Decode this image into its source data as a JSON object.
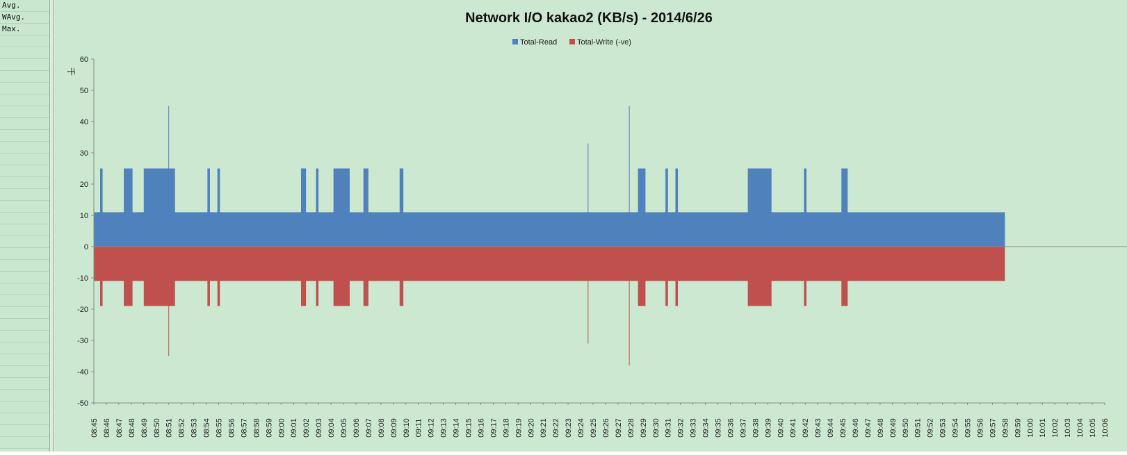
{
  "side_panel": {
    "labels": [
      "Avg.",
      "WAvg.",
      "Max."
    ]
  },
  "colors": {
    "read": "#4f81bd",
    "write": "#c0504d",
    "background": "#cce8d0"
  },
  "chart_data": {
    "type": "area",
    "title": "Network I/O kakao2 (KB/s) - 2014/6/26",
    "ylabel": "千",
    "ylim": [
      -50,
      60
    ],
    "y_ticks": [
      60,
      50,
      40,
      30,
      20,
      10,
      0,
      -10,
      -20,
      -30,
      -40,
      -50
    ],
    "grid": false,
    "legend": "top",
    "categories": [
      "08:45",
      "08:46",
      "08:47",
      "08:48",
      "08:49",
      "08:50",
      "08:51",
      "08:52",
      "08:53",
      "08:54",
      "08:55",
      "08:56",
      "08:57",
      "08:58",
      "08:59",
      "09:00",
      "09:01",
      "09:02",
      "09:03",
      "09:04",
      "09:05",
      "09:06",
      "09:07",
      "09:08",
      "09:09",
      "09:10",
      "09:11",
      "09:12",
      "09:13",
      "09:14",
      "09:15",
      "09:16",
      "09:17",
      "09:18",
      "09:19",
      "09:20",
      "09:21",
      "09:22",
      "09:23",
      "09:24",
      "09:25",
      "09:26",
      "09:27",
      "09:28",
      "09:29",
      "09:30",
      "09:31",
      "09:32",
      "09:33",
      "09:34",
      "09:35",
      "09:36",
      "09:37",
      "09:38",
      "09:39",
      "09:40",
      "09:41",
      "09:42",
      "09:43",
      "09:44",
      "09:45",
      "09:46",
      "09:47",
      "09:48",
      "09:49",
      "09:50",
      "09:51",
      "09:52",
      "09:53",
      "09:54",
      "09:55",
      "09:56",
      "09:57",
      "09:58",
      "09:59",
      "10:00",
      "10:01",
      "10:02",
      "10:03",
      "10:04",
      "10:05",
      "10:06"
    ],
    "data_end_time": "09:58",
    "series": [
      {
        "name": "Total-Read",
        "baseline": 11,
        "bursts": [
          {
            "start": "08:45.5",
            "end": "08:45.7",
            "value": 25
          },
          {
            "start": "08:47.4",
            "end": "08:48.1",
            "value": 25
          },
          {
            "start": "08:49.0",
            "end": "08:51.5",
            "value": 25
          },
          {
            "start": "08:54.1",
            "end": "08:54.3",
            "value": 25
          },
          {
            "start": "08:54.9",
            "end": "08:55.1",
            "value": 25
          },
          {
            "start": "09:01.6",
            "end": "09:02.0",
            "value": 25
          },
          {
            "start": "09:02.8",
            "end": "09:03.0",
            "value": 25
          },
          {
            "start": "09:04.2",
            "end": "09:05.5",
            "value": 25
          },
          {
            "start": "09:06.6",
            "end": "09:07.0",
            "value": 25
          },
          {
            "start": "09:09.5",
            "end": "09:09.8",
            "value": 25
          },
          {
            "start": "09:28.6",
            "end": "09:29.2",
            "value": 25
          },
          {
            "start": "09:30.8",
            "end": "09:31.0",
            "value": 25
          },
          {
            "start": "09:31.6",
            "end": "09:31.8",
            "value": 25
          },
          {
            "start": "09:37.4",
            "end": "09:39.3",
            "value": 25
          },
          {
            "start": "09:41.9",
            "end": "09:42.1",
            "value": 25
          },
          {
            "start": "09:44.9",
            "end": "09:45.4",
            "value": 25
          }
        ],
        "spikes": [
          {
            "x": "08:51.0",
            "value": 45
          },
          {
            "x": "09:27.9",
            "value": 45
          },
          {
            "x": "09:24.6",
            "value": 33
          }
        ]
      },
      {
        "name": "Total-Write (-ve)",
        "baseline": -11,
        "bursts": [
          {
            "start": "08:45.5",
            "end": "08:45.7",
            "value": -19
          },
          {
            "start": "08:47.4",
            "end": "08:48.1",
            "value": -19
          },
          {
            "start": "08:49.0",
            "end": "08:51.5",
            "value": -19
          },
          {
            "start": "08:54.1",
            "end": "08:54.3",
            "value": -19
          },
          {
            "start": "08:54.9",
            "end": "08:55.1",
            "value": -19
          },
          {
            "start": "09:01.6",
            "end": "09:02.0",
            "value": -19
          },
          {
            "start": "09:02.8",
            "end": "09:03.0",
            "value": -19
          },
          {
            "start": "09:04.2",
            "end": "09:05.5",
            "value": -19
          },
          {
            "start": "09:06.6",
            "end": "09:07.0",
            "value": -19
          },
          {
            "start": "09:09.5",
            "end": "09:09.8",
            "value": -19
          },
          {
            "start": "09:28.6",
            "end": "09:29.2",
            "value": -19
          },
          {
            "start": "09:30.8",
            "end": "09:31.0",
            "value": -19
          },
          {
            "start": "09:31.6",
            "end": "09:31.8",
            "value": -19
          },
          {
            "start": "09:37.4",
            "end": "09:39.3",
            "value": -19
          },
          {
            "start": "09:41.9",
            "end": "09:42.1",
            "value": -19
          },
          {
            "start": "09:44.9",
            "end": "09:45.4",
            "value": -19
          }
        ],
        "spikes": [
          {
            "x": "08:51.0",
            "value": -35
          },
          {
            "x": "09:27.9",
            "value": -38
          },
          {
            "x": "09:24.6",
            "value": -31
          }
        ]
      }
    ]
  }
}
